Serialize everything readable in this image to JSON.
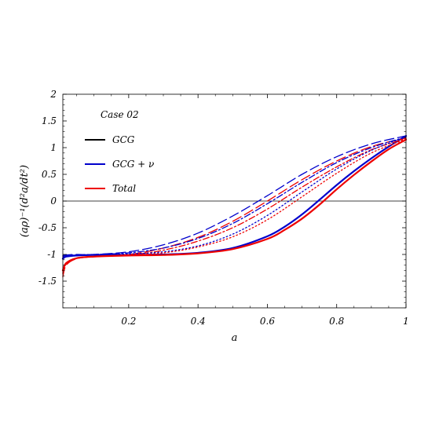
{
  "chart_data": {
    "type": "line",
    "title": "",
    "xlabel": "a",
    "ylabel": "(aρ)⁻¹(d²a/dt²)",
    "xlim": [
      0.01,
      1.0
    ],
    "ylim": [
      -2.0,
      2.0
    ],
    "x_ticks": [
      0.2,
      0.4,
      0.6,
      0.8,
      1.0
    ],
    "x_tick_labels": [
      "0.2",
      "0.4",
      "0.6",
      "0.8",
      "1"
    ],
    "y_ticks": [
      -1.5,
      -1.0,
      -0.5,
      0.0,
      0.5,
      1.0,
      1.5,
      2.0
    ],
    "y_tick_labels": [
      "-1.5",
      "-1",
      "-0.5",
      "0",
      "0.5",
      "1",
      "1.5",
      "2"
    ],
    "grid": false,
    "zero_line": true,
    "legend": {
      "placement": "top-left",
      "title": "Case 02",
      "entries": [
        {
          "label": "GCG",
          "color": "#000000"
        },
        {
          "label": "GCG + ν",
          "color": "#0000cc"
        },
        {
          "label": "Total",
          "color": "#ee0000"
        }
      ]
    },
    "series": [
      {
        "group": "GCG + ν",
        "style": "solid",
        "color": "#0000cc",
        "x": [
          0.01,
          0.02,
          0.05,
          0.1,
          0.2,
          0.3,
          0.4,
          0.5,
          0.6,
          0.65,
          0.7,
          0.75,
          0.8,
          0.85,
          0.9,
          0.95,
          1.0
        ],
        "y": [
          -1.08,
          -1.04,
          -1.02,
          -1.01,
          -1.01,
          -1.0,
          -0.97,
          -0.88,
          -0.66,
          -0.48,
          -0.25,
          0.02,
          0.3,
          0.56,
          0.8,
          1.02,
          1.22
        ]
      },
      {
        "group": "Total",
        "style": "solid",
        "color": "#ee0000",
        "x": [
          0.01,
          0.02,
          0.05,
          0.1,
          0.2,
          0.3,
          0.4,
          0.5,
          0.6,
          0.65,
          0.7,
          0.75,
          0.8,
          0.85,
          0.9,
          0.95,
          1.0
        ],
        "y": [
          -1.3,
          -1.16,
          -1.07,
          -1.04,
          -1.02,
          -1.01,
          -0.98,
          -0.9,
          -0.71,
          -0.54,
          -0.33,
          -0.07,
          0.22,
          0.49,
          0.74,
          0.97,
          1.15
        ]
      },
      {
        "group": "GCG + ν",
        "style": "dashed",
        "color": "#0000cc",
        "x": [
          0.01,
          0.02,
          0.05,
          0.1,
          0.2,
          0.3,
          0.4,
          0.5,
          0.6,
          0.7,
          0.8,
          0.9,
          1.0
        ],
        "y": [
          -1.02,
          -1.01,
          -1.0,
          -1.0,
          -0.95,
          -0.82,
          -0.6,
          -0.28,
          0.1,
          0.5,
          0.83,
          1.07,
          1.22
        ]
      },
      {
        "group": "Total",
        "style": "dashed",
        "color": "#ee0000",
        "x": [
          0.01,
          0.02,
          0.05,
          0.1,
          0.2,
          0.3,
          0.4,
          0.5,
          0.6,
          0.7,
          0.8,
          0.9,
          1.0
        ],
        "y": [
          -1.42,
          -1.2,
          -1.08,
          -1.04,
          -1.0,
          -0.88,
          -0.68,
          -0.38,
          0.0,
          0.4,
          0.75,
          1.02,
          1.18
        ]
      },
      {
        "group": "GCG + ν",
        "style": "dashdot",
        "color": "#0000cc",
        "x": [
          0.01,
          0.02,
          0.05,
          0.1,
          0.2,
          0.3,
          0.4,
          0.5,
          0.6,
          0.7,
          0.8,
          0.9,
          1.0
        ],
        "y": [
          -1.04,
          -1.02,
          -1.01,
          -1.0,
          -0.97,
          -0.88,
          -0.7,
          -0.42,
          -0.05,
          0.35,
          0.72,
          1.0,
          1.2
        ]
      },
      {
        "group": "Total",
        "style": "dashdot",
        "color": "#ee0000",
        "x": [
          0.01,
          0.02,
          0.05,
          0.1,
          0.2,
          0.3,
          0.4,
          0.5,
          0.6,
          0.7,
          0.8,
          0.9,
          1.0
        ],
        "y": [
          -1.36,
          -1.18,
          -1.07,
          -1.04,
          -1.01,
          -0.92,
          -0.75,
          -0.5,
          -0.15,
          0.26,
          0.64,
          0.96,
          1.17
        ]
      },
      {
        "group": "GCG + ν",
        "style": "dotted",
        "color": "#0000cc",
        "x": [
          0.01,
          0.02,
          0.05,
          0.1,
          0.2,
          0.3,
          0.4,
          0.5,
          0.6,
          0.7,
          0.8,
          0.9,
          1.0
        ],
        "y": [
          -1.06,
          -1.03,
          -1.01,
          -1.0,
          -0.99,
          -0.95,
          -0.84,
          -0.62,
          -0.27,
          0.17,
          0.6,
          0.95,
          1.2
        ]
      },
      {
        "group": "Total",
        "style": "dotted",
        "color": "#ee0000",
        "x": [
          0.01,
          0.02,
          0.05,
          0.1,
          0.2,
          0.3,
          0.4,
          0.5,
          0.6,
          0.7,
          0.8,
          0.9,
          1.0
        ],
        "y": [
          -1.34,
          -1.17,
          -1.07,
          -1.04,
          -1.01,
          -0.97,
          -0.86,
          -0.67,
          -0.35,
          0.08,
          0.52,
          0.9,
          1.16
        ]
      }
    ]
  }
}
